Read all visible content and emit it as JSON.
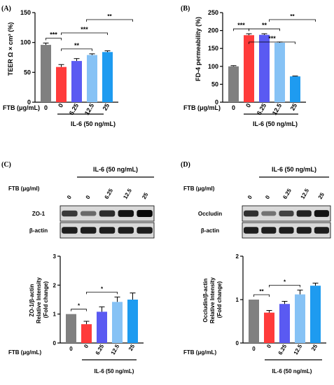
{
  "categories": [
    "0",
    "0",
    "6.25",
    "12.5",
    "25"
  ],
  "group_label": "IL-6 (50 ng/mL)",
  "colors": [
    "#808080",
    "#ff3b3b",
    "#5a5af2",
    "#86c2f5",
    "#1e9bf0"
  ],
  "chart_data": [
    {
      "type": "bar",
      "panel": "(A)",
      "categories": [
        "0",
        "0",
        "6.25",
        "12.5",
        "25"
      ],
      "x_label": "FTB (μg/mL)",
      "ylabel": "TEER Ω × cm² (%)",
      "ylim": [
        0,
        150
      ],
      "yticks": [
        "0",
        "50",
        "100",
        "150"
      ],
      "values": [
        96,
        59,
        69,
        79,
        84
      ],
      "errors": [
        3,
        4,
        4,
        2,
        2
      ],
      "significance": [
        {
          "from": 0,
          "to": 1,
          "label": "***",
          "level": 1
        },
        {
          "from": 1,
          "to": 3,
          "label": "**",
          "level": 1
        },
        {
          "from": 1,
          "to": 4,
          "label": "***",
          "level": 2
        }
      ]
    },
    {
      "type": "bar",
      "panel": "(B)",
      "categories": [
        "0",
        "0",
        "6.25",
        "12.5",
        "25"
      ],
      "x_label": "FTB (μg/mL)",
      "ylabel": "FD-4 permeability (%)",
      "ylim": [
        0,
        250
      ],
      "yticks": [
        "0",
        "50",
        "100",
        "150",
        "200",
        "250"
      ],
      "values": [
        100,
        187,
        188,
        166,
        72
      ],
      "errors": [
        2,
        4,
        3,
        2,
        1
      ],
      "significance": [
        {
          "from": 0,
          "to": 1,
          "label": "***",
          "level": 1
        },
        {
          "from": 1,
          "to": 3,
          "label": "**",
          "level": 1
        },
        {
          "from": 1,
          "to": 4,
          "label": "***",
          "level": 2
        }
      ]
    },
    {
      "type": "bar",
      "panel": "(C)",
      "categories": [
        "0",
        "0",
        "6.25",
        "12.5",
        "25"
      ],
      "x_label": "FTB (μg/mL)",
      "ylabel": [
        "ZO-1/β-actin",
        "Relative Intensity",
        "(Fold change)"
      ],
      "ylim": [
        0,
        3
      ],
      "yticks": [
        "0",
        "1",
        "2",
        "3"
      ],
      "values": [
        1.0,
        0.65,
        1.08,
        1.42,
        1.5
      ],
      "errors": [
        0.0,
        0.1,
        0.17,
        0.17,
        0.23
      ],
      "significance": [
        {
          "from": 0,
          "to": 1,
          "label": "*",
          "level": 1
        },
        {
          "from": 1,
          "to": 3,
          "label": "*",
          "level": 1
        },
        {
          "from": 1,
          "to": 4,
          "label": "**",
          "level": 2
        }
      ]
    },
    {
      "type": "bar",
      "panel": "(D)",
      "categories": [
        "0",
        "0",
        "6.25",
        "12.5",
        "25"
      ],
      "x_label": "FTB (μg/mL)",
      "ylabel": [
        "Occludin/β-actin",
        "Relative Intensity",
        "(Fold change)"
      ],
      "ylim": [
        0,
        2
      ],
      "yticks": [
        "0",
        "1",
        "2"
      ],
      "values": [
        1.0,
        0.7,
        0.9,
        1.12,
        1.32
      ],
      "errors": [
        0.0,
        0.05,
        0.06,
        0.1,
        0.06
      ],
      "significance": [
        {
          "from": 0,
          "to": 1,
          "label": "**",
          "level": 1
        },
        {
          "from": 1,
          "to": 3,
          "label": "*",
          "level": 1
        },
        {
          "from": 1,
          "to": 4,
          "label": "**",
          "level": 2
        }
      ]
    }
  ],
  "blots": [
    {
      "panel": "(C)",
      "header": "IL-6 (50 ng/mL)",
      "ftb_label": "FTB (μg/ml)",
      "lanes": [
        "0",
        "0",
        "6.25",
        "12.5",
        "25"
      ],
      "rows": [
        {
          "label": "ZO-1",
          "intensity": [
            0.75,
            0.5,
            0.82,
            0.95,
            1.0
          ]
        },
        {
          "label": "β-actin",
          "intensity": [
            0.9,
            0.9,
            0.9,
            0.9,
            0.9
          ]
        }
      ]
    },
    {
      "panel": "(D)",
      "header": "IL-6 (50 ng/mL)",
      "ftb_label": "FTB (μg/ml)",
      "lanes": [
        "0",
        "0",
        "6.25",
        "12.5",
        "25"
      ],
      "rows": [
        {
          "label": "Occludin",
          "intensity": [
            0.8,
            0.45,
            0.7,
            0.88,
            0.95
          ]
        },
        {
          "label": "β-actin",
          "intensity": [
            0.9,
            0.9,
            0.9,
            0.9,
            0.9
          ]
        }
      ]
    }
  ]
}
